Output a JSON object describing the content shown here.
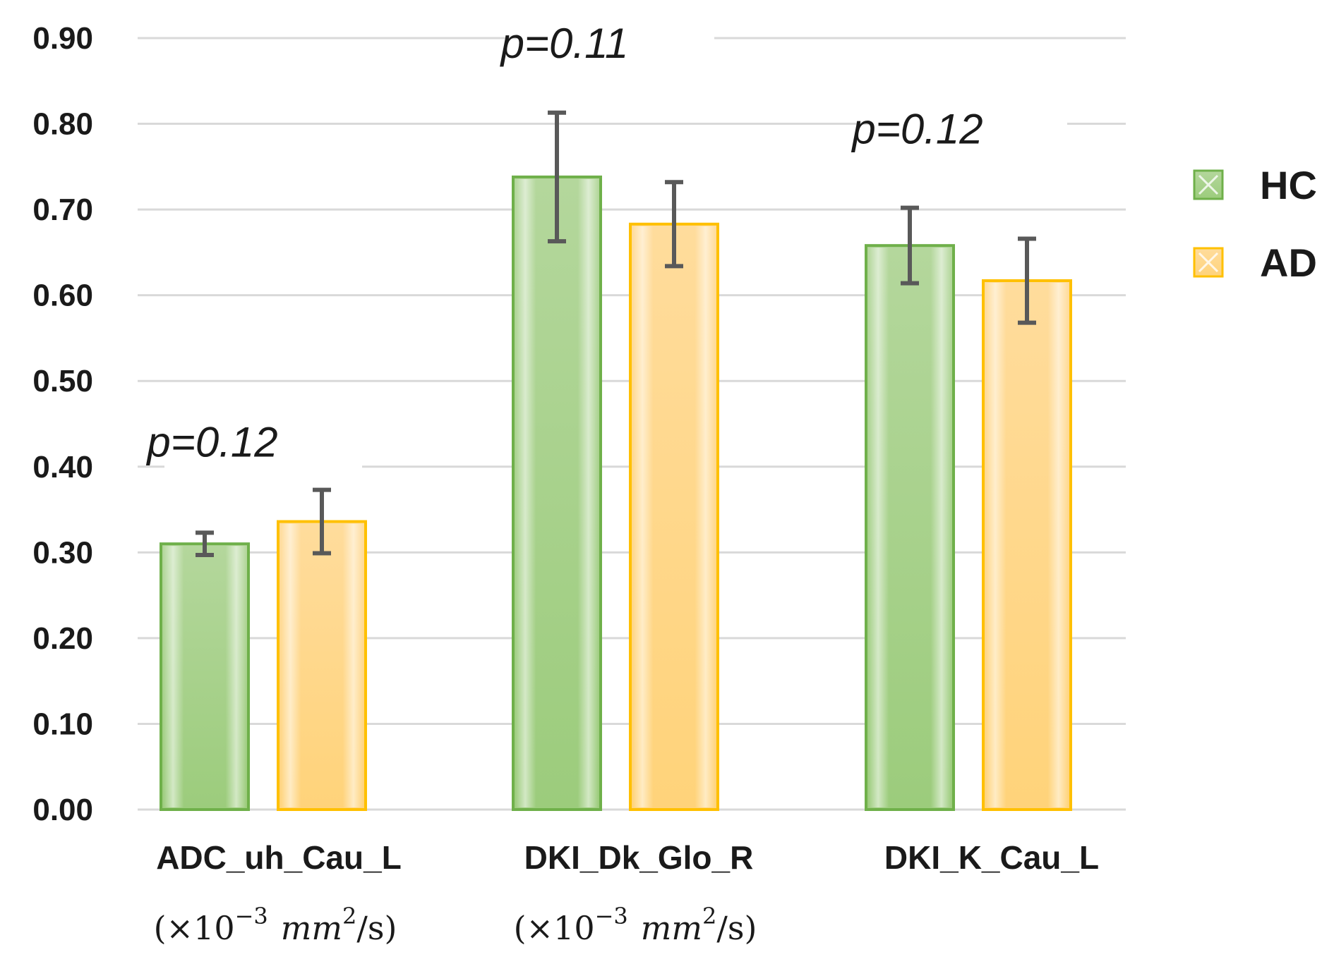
{
  "chart_data": {
    "type": "bar",
    "categories": [
      "ADC_uh_Cau_L",
      "DKI_Dk_Glo_R",
      "DKI_K_Cau_L"
    ],
    "category_units": [
      "(×10",
      "(×10",
      ""
    ],
    "unit_parts": {
      "exp": "−3",
      "mm": "mm",
      "sq": "2",
      "tail": "/s)"
    },
    "series": [
      {
        "name": "HC",
        "values": [
          0.31,
          0.738,
          0.658
        ],
        "errors": [
          0.013,
          0.075,
          0.044
        ],
        "fill_top": "#b4d79c",
        "fill_bottom": "#9ccc7c",
        "stroke": "#6fb04a"
      },
      {
        "name": "AD",
        "values": [
          0.336,
          0.683,
          0.617
        ],
        "errors": [
          0.037,
          0.049,
          0.049
        ],
        "fill_top": "#ffdc9c",
        "fill_bottom": "#ffd37a",
        "stroke": "#ffc000"
      }
    ],
    "annotations": [
      {
        "text": "p=0.12",
        "category_index": 0,
        "value": 0.43
      },
      {
        "text": "p=0.11",
        "category_index": 1,
        "value": 0.895
      },
      {
        "text": "p=0.12",
        "category_index": 2,
        "value": 0.795
      }
    ],
    "ylim": [
      0,
      0.9
    ],
    "yticks": [
      "0.00",
      "0.10",
      "0.20",
      "0.30",
      "0.40",
      "0.50",
      "0.60",
      "0.70",
      "0.80",
      "0.90"
    ],
    "ytick_values": [
      0,
      0.1,
      0.2,
      0.3,
      0.4,
      0.5,
      0.6,
      0.7,
      0.8,
      0.9
    ],
    "legend_position": "right",
    "grid": true,
    "title": "",
    "xlabel": "",
    "ylabel": ""
  }
}
